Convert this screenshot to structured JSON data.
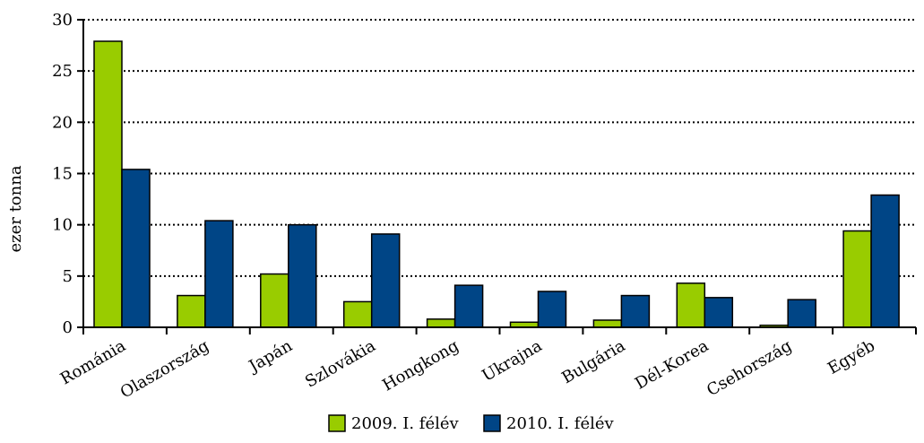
{
  "chart_data": {
    "type": "bar",
    "categories": [
      "Románia",
      "Olaszország",
      "Japán",
      "Szlovákia",
      "Hongkong",
      "Ukrajna",
      "Bulgária",
      "Dél-Korea",
      "Csehország",
      "Egyéb"
    ],
    "series": [
      {
        "name": "2009. I. félév",
        "color": "#99cc00",
        "values": [
          27.9,
          3.1,
          5.2,
          2.5,
          0.8,
          0.5,
          0.7,
          4.3,
          0.2,
          9.4
        ]
      },
      {
        "name": "2010. I. félév",
        "color": "#004586",
        "values": [
          15.4,
          10.4,
          10.0,
          9.1,
          4.1,
          3.5,
          3.1,
          2.9,
          2.7,
          12.9
        ]
      }
    ],
    "ylabel": "ezer tonna",
    "ylim": [
      0,
      30
    ],
    "yticks": [
      0,
      5,
      10,
      15,
      20,
      25,
      30
    ],
    "grid": "horizontal dotted",
    "legend_position": "bottom"
  }
}
